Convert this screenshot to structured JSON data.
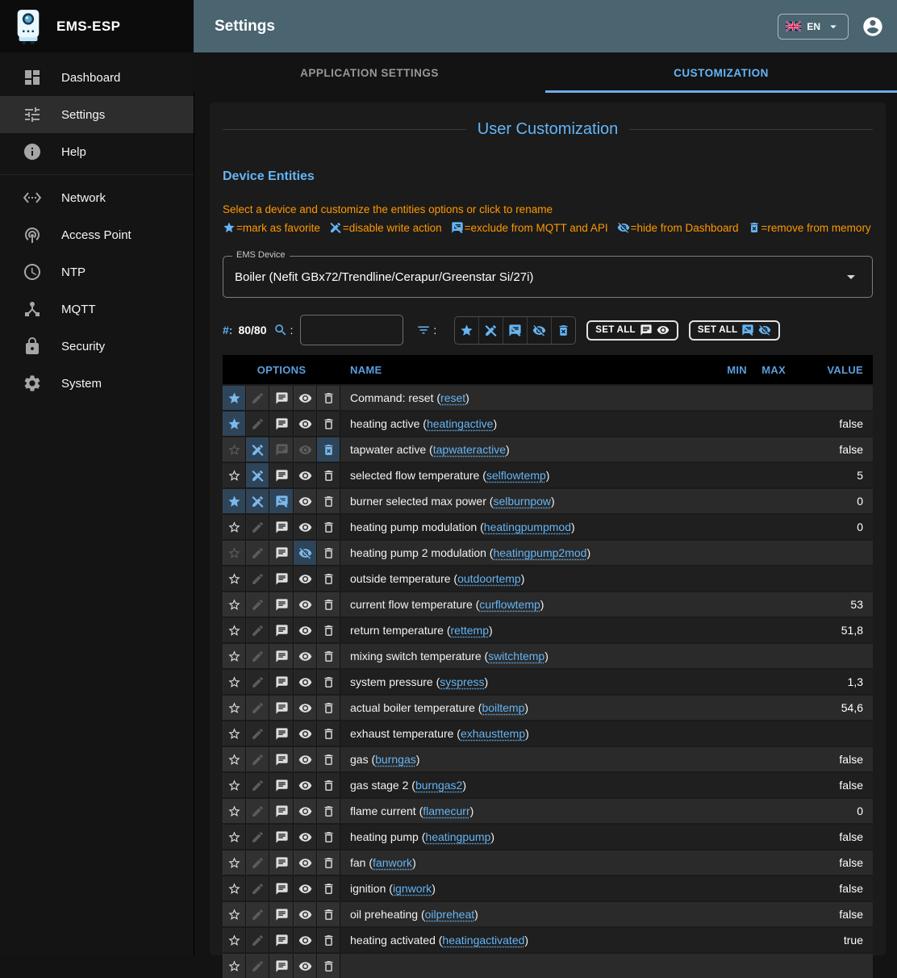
{
  "brand": {
    "name": "EMS-ESP",
    "logo_icon": "boiler-logo-icon"
  },
  "topbar": {
    "title": "Settings",
    "language": {
      "flag_icon": "uk-flag-icon",
      "code": "EN",
      "caret_icon": "caret-down-icon"
    },
    "user_icon": "account-circle-icon"
  },
  "sidebar": {
    "items": [
      {
        "label": "Dashboard",
        "icon": "dashboard-icon",
        "active": false
      },
      {
        "label": "Settings",
        "icon": "tune-icon",
        "active": true
      },
      {
        "label": "Help",
        "icon": "info-icon",
        "active": false
      },
      {
        "label": "Network",
        "icon": "network-icon",
        "active": false
      },
      {
        "label": "Access Point",
        "icon": "access-point-icon",
        "active": false
      },
      {
        "label": "NTP",
        "icon": "clock-icon",
        "active": false
      },
      {
        "label": "MQTT",
        "icon": "mqtt-hub-icon",
        "active": false
      },
      {
        "label": "Security",
        "icon": "lock-icon",
        "active": false
      },
      {
        "label": "System",
        "icon": "gear-icon",
        "active": false
      }
    ],
    "divider_after": "Help"
  },
  "tabs": [
    {
      "label": "APPLICATION SETTINGS",
      "active": false
    },
    {
      "label": "CUSTOMIZATION",
      "active": true
    }
  ],
  "page": {
    "heading": "User Customization",
    "section": "Device Entities",
    "hint": "Select a device and customize the entities options or click to rename",
    "legend": [
      {
        "icon": "star-icon",
        "text": "=mark as favorite"
      },
      {
        "icon": "edit-off-icon",
        "text": "=disable write action"
      },
      {
        "icon": "comment-off-icon",
        "text": "=exclude from MQTT and API"
      },
      {
        "icon": "eye-off-icon",
        "text": "=hide from Dashboard"
      },
      {
        "icon": "delete-x-icon",
        "text": "=remove from memory"
      }
    ],
    "device_select": {
      "label": "EMS Device",
      "value": "Boiler (Nefit GBx72/Trendline/Cerapur/Greenstar Si/27i)"
    },
    "toolbar": {
      "count_prefix": "#:",
      "count": "80/80",
      "search_colon": ":",
      "search_value": "",
      "filter_colon": ":",
      "filter_icons": [
        "star-icon",
        "edit-off-icon",
        "comment-off-icon",
        "eye-off-icon",
        "delete-x-icon"
      ],
      "set_all_visible_label": "SET ALL",
      "set_all_hidden_label": "SET ALL"
    },
    "table": {
      "headers": {
        "options": "OPTIONS",
        "name": "NAME",
        "min": "MIN",
        "max": "MAX",
        "value": "VALUE"
      },
      "rows": [
        {
          "name": "Command: reset",
          "id": "reset",
          "value": "",
          "opts": [
            "on",
            "dim",
            "normal",
            "normal",
            "normal"
          ]
        },
        {
          "name": "heating active",
          "id": "heatingactive",
          "value": "false",
          "opts": [
            "on",
            "dim",
            "normal",
            "normal",
            "normal"
          ]
        },
        {
          "name": "tapwater active",
          "id": "tapwateractive",
          "value": "false",
          "opts": [
            "dim",
            "on",
            "dim",
            "dim",
            "on"
          ]
        },
        {
          "name": "selected flow temperature",
          "id": "selflowtemp",
          "value": "5",
          "opts": [
            "normal",
            "on",
            "normal",
            "normal",
            "normal"
          ]
        },
        {
          "name": "burner selected max power",
          "id": "selburnpow",
          "value": "0",
          "opts": [
            "on",
            "on",
            "on",
            "normal",
            "normal"
          ]
        },
        {
          "name": "heating pump modulation",
          "id": "heatingpumpmod",
          "value": "0",
          "opts": [
            "normal",
            "dim",
            "normal",
            "normal",
            "normal"
          ]
        },
        {
          "name": "heating pump 2 modulation",
          "id": "heatingpump2mod",
          "value": "",
          "opts": [
            "dim",
            "dim",
            "normal",
            "on",
            "normal"
          ]
        },
        {
          "name": "outside temperature",
          "id": "outdoortemp",
          "value": "",
          "opts": [
            "normal",
            "dim",
            "normal",
            "normal",
            "normal"
          ]
        },
        {
          "name": "current flow temperature",
          "id": "curflowtemp",
          "value": "53",
          "opts": [
            "normal",
            "dim",
            "normal",
            "normal",
            "normal"
          ]
        },
        {
          "name": "return temperature",
          "id": "rettemp",
          "value": "51,8",
          "opts": [
            "normal",
            "dim",
            "normal",
            "normal",
            "normal"
          ]
        },
        {
          "name": "mixing switch temperature",
          "id": "switchtemp",
          "value": "",
          "opts": [
            "normal",
            "dim",
            "normal",
            "normal",
            "normal"
          ]
        },
        {
          "name": "system pressure",
          "id": "syspress",
          "value": "1,3",
          "opts": [
            "normal",
            "dim",
            "normal",
            "normal",
            "normal"
          ]
        },
        {
          "name": "actual boiler temperature",
          "id": "boiltemp",
          "value": "54,6",
          "opts": [
            "normal",
            "dim",
            "normal",
            "normal",
            "normal"
          ]
        },
        {
          "name": "exhaust temperature",
          "id": "exhausttemp",
          "value": "",
          "opts": [
            "normal",
            "dim",
            "normal",
            "normal",
            "normal"
          ]
        },
        {
          "name": "gas",
          "id": "burngas",
          "value": "false",
          "opts": [
            "normal",
            "dim",
            "normal",
            "normal",
            "normal"
          ]
        },
        {
          "name": "gas stage 2",
          "id": "burngas2",
          "value": "false",
          "opts": [
            "normal",
            "dim",
            "normal",
            "normal",
            "normal"
          ]
        },
        {
          "name": "flame current",
          "id": "flamecurr",
          "value": "0",
          "opts": [
            "normal",
            "dim",
            "normal",
            "normal",
            "normal"
          ]
        },
        {
          "name": "heating pump",
          "id": "heatingpump",
          "value": "false",
          "opts": [
            "normal",
            "dim",
            "normal",
            "normal",
            "normal"
          ]
        },
        {
          "name": "fan",
          "id": "fanwork",
          "value": "false",
          "opts": [
            "normal",
            "dim",
            "normal",
            "normal",
            "normal"
          ]
        },
        {
          "name": "ignition",
          "id": "ignwork",
          "value": "false",
          "opts": [
            "normal",
            "dim",
            "normal",
            "normal",
            "normal"
          ]
        },
        {
          "name": "oil preheating",
          "id": "oilpreheat",
          "value": "false",
          "opts": [
            "normal",
            "dim",
            "normal",
            "normal",
            "normal"
          ]
        },
        {
          "name": "heating activated",
          "id": "heatingactivated",
          "value": "true",
          "opts": [
            "normal",
            "dim",
            "normal",
            "normal",
            "normal"
          ]
        },
        {
          "name": "",
          "id": "",
          "value": "",
          "opts": [
            "normal",
            "dim",
            "normal",
            "normal",
            "normal"
          ]
        }
      ]
    }
  },
  "colors": {
    "accent": "#64b5f6",
    "topbar_background": "#4a6470",
    "instructions_orange": "#ff9800",
    "active_option_cell": "#2e4458"
  }
}
